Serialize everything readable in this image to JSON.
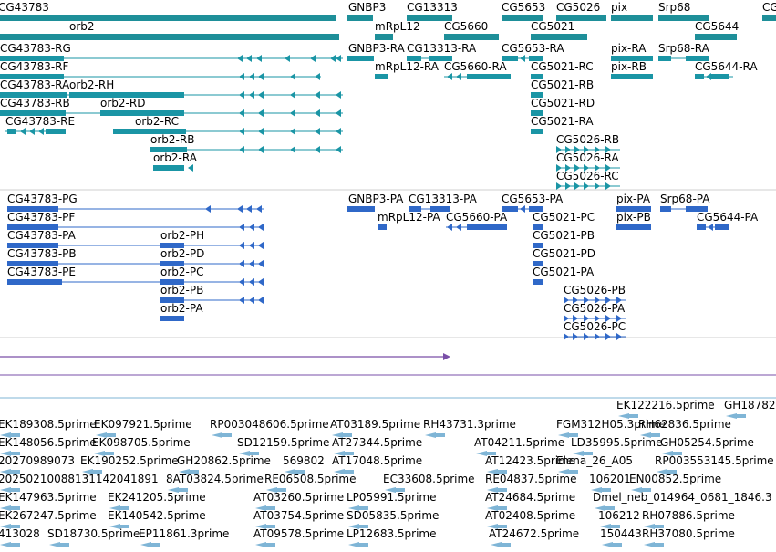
{
  "colors": {
    "gene": "#1e8f99",
    "transcript": "#1a95a5",
    "protein": "#2f68c8",
    "ruler": "#7a4fa8",
    "est": "#7fb5d6",
    "divider": "#cfcfcf"
  },
  "genes": [
    {
      "label": "CG43783"
    },
    {
      "label": "orb2"
    },
    {
      "label": "GNBP3"
    },
    {
      "label": "CG13313"
    },
    {
      "label": "mRpL12"
    },
    {
      "label": "CG5660"
    },
    {
      "label": "CG5653"
    },
    {
      "label": "CG5026"
    },
    {
      "label": "CG5021"
    },
    {
      "label": "pix"
    },
    {
      "label": "Srp68"
    },
    {
      "label": "CG5644"
    },
    {
      "label": "CG"
    }
  ],
  "transcripts": [
    {
      "label": "CG43783-RG"
    },
    {
      "label": "CG43783-RF"
    },
    {
      "label": "CG43783-RA"
    },
    {
      "label": "orb2-RH"
    },
    {
      "label": "CG43783-RB"
    },
    {
      "label": "orb2-RD"
    },
    {
      "label": "CG43783-RE"
    },
    {
      "label": "orb2-RC"
    },
    {
      "label": "orb2-RB"
    },
    {
      "label": "orb2-RA"
    },
    {
      "label": "GNBP3-RA"
    },
    {
      "label": "CG13313-RA"
    },
    {
      "label": "mRpL12-RA"
    },
    {
      "label": "CG5660-RA"
    },
    {
      "label": "CG5653-RA"
    },
    {
      "label": "CG5021-RC"
    },
    {
      "label": "CG5021-RB"
    },
    {
      "label": "CG5021-RD"
    },
    {
      "label": "CG5021-RA"
    },
    {
      "label": "CG5026-RB"
    },
    {
      "label": "CG5026-RA"
    },
    {
      "label": "CG5026-RC"
    },
    {
      "label": "pix-RA"
    },
    {
      "label": "pix-RB"
    },
    {
      "label": "Srp68-RA"
    },
    {
      "label": "CG5644-RA"
    }
  ],
  "proteins": [
    {
      "label": "CG43783-PG"
    },
    {
      "label": "CG43783-PF"
    },
    {
      "label": "CG43783-PA"
    },
    {
      "label": "CG43783-PB"
    },
    {
      "label": "CG43783-PE"
    },
    {
      "label": "orb2-PH"
    },
    {
      "label": "orb2-PD"
    },
    {
      "label": "orb2-PC"
    },
    {
      "label": "orb2-PB"
    },
    {
      "label": "orb2-PA"
    },
    {
      "label": "GNBP3-PA"
    },
    {
      "label": "CG13313-PA"
    },
    {
      "label": "mRpL12-PA"
    },
    {
      "label": "CG5660-PA"
    },
    {
      "label": "CG5653-PA"
    },
    {
      "label": "CG5021-PC"
    },
    {
      "label": "CG5021-PB"
    },
    {
      "label": "CG5021-PD"
    },
    {
      "label": "CG5021-PA"
    },
    {
      "label": "CG5026-PB"
    },
    {
      "label": "CG5026-PA"
    },
    {
      "label": "CG5026-PC"
    },
    {
      "label": "pix-PA"
    },
    {
      "label": "pix-PB"
    },
    {
      "label": "Srp68-PA"
    },
    {
      "label": "CG5644-PA"
    }
  ],
  "ests": [
    {
      "label": "EK122216.5prime"
    },
    {
      "label": "GH18782"
    },
    {
      "label": "EK189308.5prime"
    },
    {
      "label": "EK097921.5prime"
    },
    {
      "label": "RP003048606.5prime"
    },
    {
      "label": "AT03189.5prime"
    },
    {
      "label": "RH43731.3prime"
    },
    {
      "label": "FGM312H05.3prime"
    },
    {
      "label": "RH62836.5prime"
    },
    {
      "label": "EK148056.5prime"
    },
    {
      "label": "EK098705.5prime"
    },
    {
      "label": "SD12159.5prime"
    },
    {
      "label": "AT27344.5prime"
    },
    {
      "label": "AT04211.5prime"
    },
    {
      "label": "LD35995.5prime"
    },
    {
      "label": "GH05254.5prime"
    },
    {
      "label": "20270989073"
    },
    {
      "label": "EK190252.5prime"
    },
    {
      "label": "GH20862.5prime"
    },
    {
      "label": "569802"
    },
    {
      "label": "AT17048.5prime"
    },
    {
      "label": "AT12423.5prime"
    },
    {
      "label": "Elena_26_A05"
    },
    {
      "label": "RP003553145.5prime"
    },
    {
      "label": "20250210088131142041891"
    },
    {
      "label": "8AT03824.5prime"
    },
    {
      "label": "RE06508.5prime"
    },
    {
      "label": "EC33608.5prime"
    },
    {
      "label": "RE04837.5prime"
    },
    {
      "label": "106201"
    },
    {
      "label": "EN00852.5prime"
    },
    {
      "label": "EK147963.5prime"
    },
    {
      "label": "EK241205.5prime"
    },
    {
      "label": "AT03260.5prime"
    },
    {
      "label": "LP05991.5prime"
    },
    {
      "label": "AT24684.5prime"
    },
    {
      "label": "Dmel_neb_014964_0681_1846.3"
    },
    {
      "label": "EK267247.5prime"
    },
    {
      "label": "EK140542.5prime"
    },
    {
      "label": "AT03754.5prime"
    },
    {
      "label": "SD05835.5prime"
    },
    {
      "label": "AT02408.5prime"
    },
    {
      "label": "106212"
    },
    {
      "label": "RH07886.5prime"
    },
    {
      "label": "413028"
    },
    {
      "label": "SD18730.5prime"
    },
    {
      "label": "EP11861.3prime"
    },
    {
      "label": "AT09578.5prime"
    },
    {
      "label": "LP12683.5prime"
    },
    {
      "label": "AT24672.5prime"
    },
    {
      "label": "150443"
    },
    {
      "label": "RH37080.5prime"
    }
  ]
}
